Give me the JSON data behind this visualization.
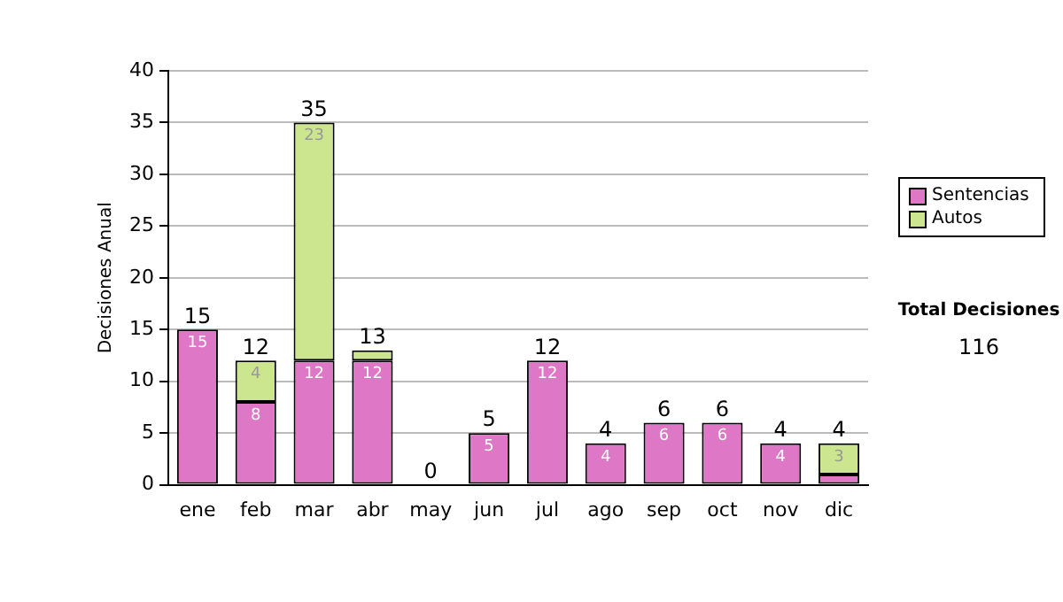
{
  "chart_data": {
    "type": "bar",
    "stacked": true,
    "ylabel": "Decisiones Anual",
    "categories": [
      "ene",
      "feb",
      "mar",
      "abr",
      "may",
      "jun",
      "jul",
      "ago",
      "sep",
      "oct",
      "nov",
      "dic"
    ],
    "series": [
      {
        "name": "Sentencias",
        "color": "#dd77c6",
        "values": [
          15,
          8,
          12,
          12,
          0,
          5,
          12,
          4,
          6,
          6,
          4,
          1
        ],
        "value_labels": [
          "15",
          "8",
          "12",
          "12",
          null,
          "5",
          "12",
          "4",
          "6",
          "6",
          "4",
          null
        ]
      },
      {
        "name": "Autos",
        "color": "#cce68f",
        "values": [
          0,
          4,
          23,
          1,
          0,
          0,
          0,
          0,
          0,
          0,
          0,
          3
        ],
        "value_labels": [
          null,
          "4",
          "23",
          null,
          null,
          null,
          null,
          null,
          null,
          null,
          null,
          "3"
        ]
      }
    ],
    "totals": [
      "15",
      "12",
      "35",
      "13",
      "0",
      "5",
      "12",
      "4",
      "6",
      "6",
      "4",
      "4"
    ],
    "ylim": [
      0,
      40
    ],
    "yticks": [
      0,
      5,
      10,
      15,
      20,
      25,
      30,
      35,
      40
    ],
    "grid": "y",
    "legend": "right",
    "annotations": [
      "Total Decisiones",
      "116"
    ]
  }
}
